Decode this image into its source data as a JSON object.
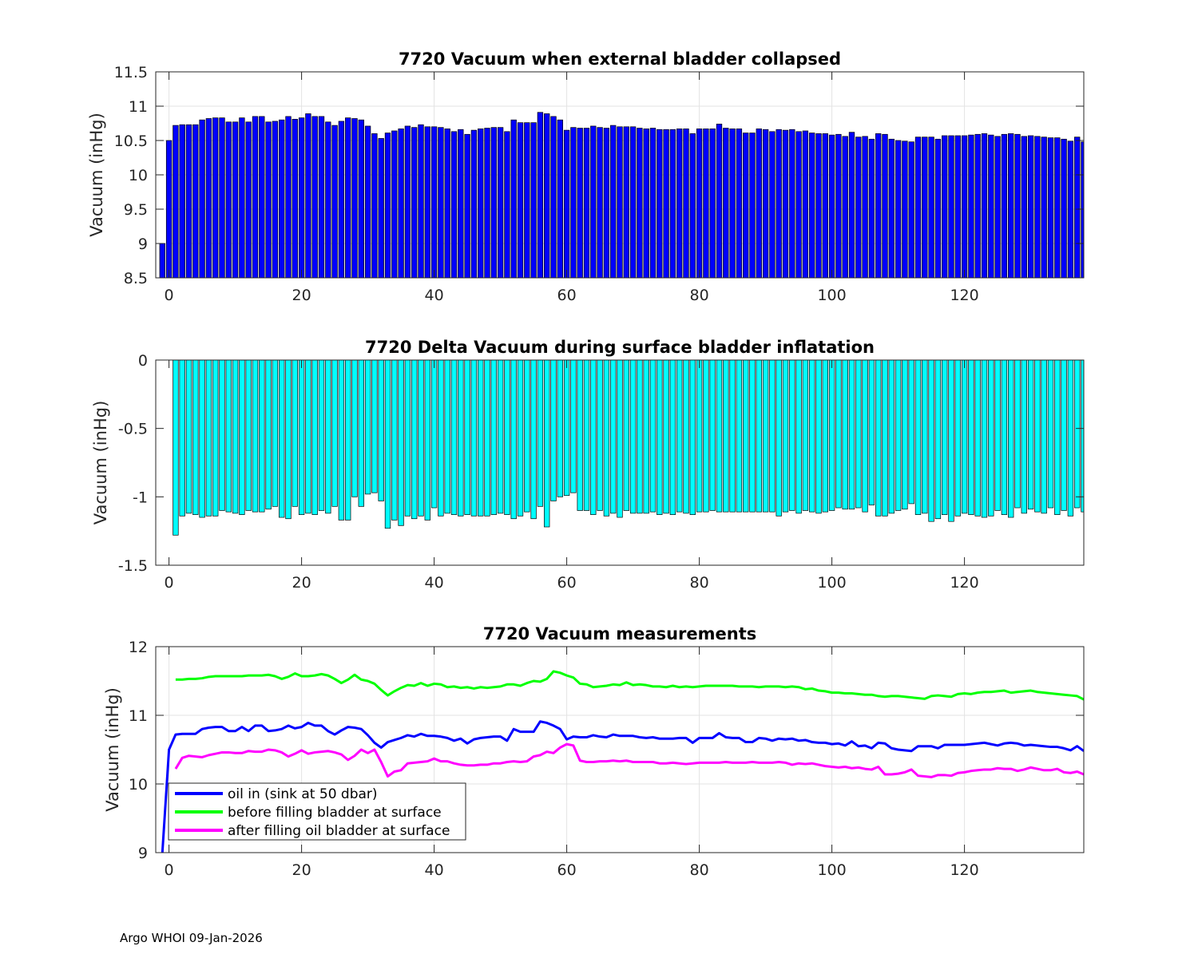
{
  "footer": "Argo WHOI 09-Jan-2026",
  "chart_data": [
    {
      "type": "bar",
      "title": "7720 Vacuum when external bladder collapsed",
      "xlabel": "",
      "ylabel": "Vacuum (inHg)",
      "xlim": [
        -2,
        138
      ],
      "ylim": [
        8.5,
        11.5
      ],
      "xticks": [
        0,
        20,
        40,
        60,
        80,
        100,
        120
      ],
      "yticks": [
        8.5,
        9,
        9.5,
        10,
        10.5,
        11,
        11.5
      ],
      "ytick_labels": [
        "8.5",
        "9",
        "9.5",
        "10",
        "10.5",
        "11",
        "11.5"
      ],
      "grid": true,
      "bar_color": "#0000ff",
      "x_start": -1,
      "values": [
        9.0,
        10.5,
        10.72,
        10.73,
        10.73,
        10.73,
        10.8,
        10.82,
        10.83,
        10.83,
        10.77,
        10.77,
        10.83,
        10.77,
        10.85,
        10.85,
        10.77,
        10.78,
        10.8,
        10.85,
        10.81,
        10.83,
        10.89,
        10.85,
        10.85,
        10.77,
        10.72,
        10.78,
        10.83,
        10.82,
        10.8,
        10.71,
        10.6,
        10.53,
        10.61,
        10.64,
        10.67,
        10.71,
        10.69,
        10.73,
        10.7,
        10.7,
        10.69,
        10.67,
        10.63,
        10.66,
        10.59,
        10.65,
        10.67,
        10.68,
        10.69,
        10.69,
        10.63,
        10.8,
        10.76,
        10.76,
        10.76,
        10.91,
        10.89,
        10.85,
        10.8,
        10.65,
        10.69,
        10.68,
        10.68,
        10.71,
        10.69,
        10.68,
        10.72,
        10.7,
        10.7,
        10.7,
        10.68,
        10.67,
        10.68,
        10.66,
        10.66,
        10.66,
        10.67,
        10.67,
        10.6,
        10.67,
        10.67,
        10.67,
        10.74,
        10.68,
        10.67,
        10.67,
        10.61,
        10.61,
        10.67,
        10.66,
        10.63,
        10.66,
        10.65,
        10.66,
        10.63,
        10.64,
        10.61,
        10.6,
        10.6,
        10.58,
        10.59,
        10.56,
        10.62,
        10.55,
        10.56,
        10.52,
        10.6,
        10.59,
        10.52,
        10.5,
        10.49,
        10.48,
        10.55,
        10.55,
        10.55,
        10.52,
        10.57,
        10.57,
        10.57,
        10.57,
        10.58,
        10.59,
        10.6,
        10.58,
        10.56,
        10.59,
        10.6,
        10.59,
        10.56,
        10.57,
        10.56,
        10.55,
        10.54,
        10.54,
        10.52,
        10.49,
        10.55,
        10.48
      ]
    },
    {
      "type": "bar",
      "title": "7720 Delta Vacuum during surface bladder inflatation",
      "xlabel": "",
      "ylabel": "Vacuum (inHg)",
      "xlim": [
        -2,
        138
      ],
      "ylim": [
        -1.5,
        0
      ],
      "xticks": [
        0,
        20,
        40,
        60,
        80,
        100,
        120
      ],
      "yticks": [
        -1.5,
        -1,
        -0.5,
        0
      ],
      "ytick_labels": [
        "-1.5",
        "-1",
        "-0.5",
        "0"
      ],
      "grid": false,
      "bar_color": "#00ffff",
      "x_start": 1,
      "values": [
        -1.28,
        -1.14,
        -1.12,
        -1.13,
        -1.15,
        -1.14,
        -1.14,
        -1.1,
        -1.11,
        -1.12,
        -1.13,
        -1.1,
        -1.11,
        -1.11,
        -1.09,
        -1.07,
        -1.15,
        -1.16,
        -1.07,
        -1.13,
        -1.12,
        -1.13,
        -1.1,
        -1.12,
        -1.07,
        -1.17,
        -1.17,
        -1.0,
        -1.07,
        -0.98,
        -0.97,
        -1.03,
        -1.23,
        -1.17,
        -1.21,
        -1.14,
        -1.16,
        -1.14,
        -1.17,
        -1.08,
        -1.14,
        -1.12,
        -1.13,
        -1.14,
        -1.13,
        -1.14,
        -1.14,
        -1.14,
        -1.13,
        -1.12,
        -1.13,
        -1.16,
        -1.14,
        -1.11,
        -1.16,
        -1.07,
        -1.22,
        -1.03,
        -1.0,
        -0.99,
        -0.97,
        -1.1,
        -1.1,
        -1.13,
        -1.1,
        -1.14,
        -1.12,
        -1.15,
        -1.1,
        -1.12,
        -1.12,
        -1.12,
        -1.11,
        -1.13,
        -1.12,
        -1.13,
        -1.11,
        -1.12,
        -1.13,
        -1.11,
        -1.11,
        -1.1,
        -1.11,
        -1.11,
        -1.11,
        -1.11,
        -1.11,
        -1.11,
        -1.11,
        -1.11,
        -1.11,
        -1.14,
        -1.11,
        -1.1,
        -1.12,
        -1.1,
        -1.11,
        -1.12,
        -1.11,
        -1.1,
        -1.08,
        -1.09,
        -1.09,
        -1.08,
        -1.11,
        -1.06,
        -1.14,
        -1.14,
        -1.12,
        -1.1,
        -1.09,
        -1.05,
        -1.13,
        -1.12,
        -1.18,
        -1.16,
        -1.13,
        -1.18,
        -1.14,
        -1.12,
        -1.13,
        -1.14,
        -1.15,
        -1.14,
        -1.1,
        -1.13,
        -1.15,
        -1.08,
        -1.12,
        -1.09,
        -1.11,
        -1.12,
        -1.08,
        -1.13,
        -1.1,
        -1.14,
        -1.08,
        -1.11,
        -1.12
      ]
    },
    {
      "type": "line",
      "title": "7720 Vacuum measurements",
      "xlabel": "",
      "ylabel": "Vacuum (inHg)",
      "xlim": [
        -2,
        138
      ],
      "ylim": [
        9,
        12
      ],
      "xticks": [
        0,
        20,
        40,
        60,
        80,
        100,
        120
      ],
      "yticks": [
        9,
        10,
        11,
        12
      ],
      "ytick_labels": [
        "9",
        "10",
        "11",
        "12"
      ],
      "grid": true,
      "legend_position": "bottom-left",
      "series": [
        {
          "name": "oil in (sink at 50 dbar)",
          "color": "#0000ff",
          "x_start": -1,
          "values": [
            9.0,
            10.5,
            10.72,
            10.73,
            10.73,
            10.73,
            10.8,
            10.82,
            10.83,
            10.83,
            10.77,
            10.77,
            10.83,
            10.77,
            10.85,
            10.85,
            10.77,
            10.78,
            10.8,
            10.85,
            10.81,
            10.83,
            10.89,
            10.85,
            10.85,
            10.77,
            10.72,
            10.78,
            10.83,
            10.82,
            10.8,
            10.71,
            10.6,
            10.53,
            10.61,
            10.64,
            10.67,
            10.71,
            10.69,
            10.73,
            10.7,
            10.7,
            10.69,
            10.67,
            10.63,
            10.66,
            10.59,
            10.65,
            10.67,
            10.68,
            10.69,
            10.69,
            10.63,
            10.8,
            10.76,
            10.76,
            10.76,
            10.91,
            10.89,
            10.85,
            10.8,
            10.65,
            10.69,
            10.68,
            10.68,
            10.71,
            10.69,
            10.68,
            10.72,
            10.7,
            10.7,
            10.7,
            10.68,
            10.67,
            10.68,
            10.66,
            10.66,
            10.66,
            10.67,
            10.67,
            10.6,
            10.67,
            10.67,
            10.67,
            10.74,
            10.68,
            10.67,
            10.67,
            10.61,
            10.61,
            10.67,
            10.66,
            10.63,
            10.66,
            10.65,
            10.66,
            10.63,
            10.64,
            10.61,
            10.6,
            10.6,
            10.58,
            10.59,
            10.56,
            10.62,
            10.55,
            10.56,
            10.52,
            10.6,
            10.59,
            10.52,
            10.5,
            10.49,
            10.48,
            10.55,
            10.55,
            10.55,
            10.52,
            10.57,
            10.57,
            10.57,
            10.57,
            10.58,
            10.59,
            10.6,
            10.58,
            10.56,
            10.59,
            10.6,
            10.59,
            10.56,
            10.57,
            10.56,
            10.55,
            10.54,
            10.54,
            10.52,
            10.49,
            10.55,
            10.48
          ]
        },
        {
          "name": "before filling bladder at surface",
          "color": "#00ff00",
          "x_start": 1,
          "values": [
            11.52,
            11.52,
            11.53,
            11.53,
            11.54,
            11.56,
            11.57,
            11.57,
            11.57,
            11.57,
            11.57,
            11.58,
            11.58,
            11.58,
            11.59,
            11.57,
            11.53,
            11.56,
            11.61,
            11.57,
            11.57,
            11.58,
            11.6,
            11.58,
            11.53,
            11.47,
            11.52,
            11.59,
            11.52,
            11.5,
            11.46,
            11.37,
            11.29,
            11.35,
            11.4,
            11.44,
            11.43,
            11.47,
            11.43,
            11.46,
            11.45,
            11.41,
            11.42,
            11.4,
            11.41,
            11.39,
            11.41,
            11.4,
            11.41,
            11.42,
            11.45,
            11.45,
            11.43,
            11.47,
            11.5,
            11.49,
            11.53,
            11.64,
            11.62,
            11.58,
            11.55,
            11.46,
            11.45,
            11.41,
            11.42,
            11.43,
            11.45,
            11.44,
            11.48,
            11.44,
            11.45,
            11.44,
            11.42,
            11.42,
            11.41,
            11.43,
            11.41,
            11.42,
            11.41,
            11.42,
            11.43,
            11.43,
            11.43,
            11.43,
            11.43,
            11.42,
            11.42,
            11.42,
            11.41,
            11.42,
            11.42,
            11.42,
            11.41,
            11.42,
            11.41,
            11.38,
            11.39,
            11.36,
            11.35,
            11.33,
            11.33,
            11.32,
            11.32,
            11.31,
            11.3,
            11.3,
            11.28,
            11.27,
            11.28,
            11.28,
            11.27,
            11.26,
            11.25,
            11.24,
            11.28,
            11.29,
            11.28,
            11.27,
            11.31,
            11.32,
            11.31,
            11.33,
            11.34,
            11.34,
            11.35,
            11.36,
            11.33,
            11.34,
            11.35,
            11.36,
            11.34,
            11.33,
            11.32,
            11.31,
            11.3,
            11.29,
            11.28,
            11.23,
            11.23
          ]
        },
        {
          "name": "after filling oil bladder at surface",
          "color": "#ff00ff",
          "x_start": 1,
          "values": [
            10.22,
            10.38,
            10.41,
            10.4,
            10.39,
            10.42,
            10.44,
            10.46,
            10.46,
            10.45,
            10.45,
            10.48,
            10.47,
            10.47,
            10.5,
            10.49,
            10.46,
            10.4,
            10.44,
            10.49,
            10.44,
            10.46,
            10.47,
            10.48,
            10.46,
            10.43,
            10.35,
            10.41,
            10.5,
            10.45,
            10.5,
            10.32,
            10.11,
            10.18,
            10.2,
            10.3,
            10.31,
            10.32,
            10.33,
            10.37,
            10.33,
            10.33,
            10.3,
            10.28,
            10.27,
            10.27,
            10.28,
            10.28,
            10.3,
            10.3,
            10.32,
            10.33,
            10.32,
            10.33,
            10.4,
            10.42,
            10.47,
            10.45,
            10.53,
            10.58,
            10.56,
            10.34,
            10.32,
            10.32,
            10.33,
            10.33,
            10.34,
            10.33,
            10.34,
            10.32,
            10.32,
            10.32,
            10.32,
            10.3,
            10.3,
            10.31,
            10.3,
            10.29,
            10.3,
            10.31,
            10.31,
            10.31,
            10.31,
            10.32,
            10.31,
            10.31,
            10.31,
            10.32,
            10.31,
            10.31,
            10.31,
            10.32,
            10.31,
            10.28,
            10.3,
            10.29,
            10.3,
            10.28,
            10.26,
            10.25,
            10.24,
            10.25,
            10.23,
            10.24,
            10.22,
            10.21,
            10.25,
            10.14,
            10.14,
            10.15,
            10.17,
            10.21,
            10.12,
            10.11,
            10.1,
            10.13,
            10.13,
            10.12,
            10.16,
            10.17,
            10.19,
            10.2,
            10.21,
            10.21,
            10.23,
            10.22,
            10.22,
            10.19,
            10.21,
            10.24,
            10.22,
            10.2,
            10.2,
            10.22,
            10.17,
            10.16,
            10.18,
            10.14,
            10.13
          ]
        }
      ]
    }
  ]
}
